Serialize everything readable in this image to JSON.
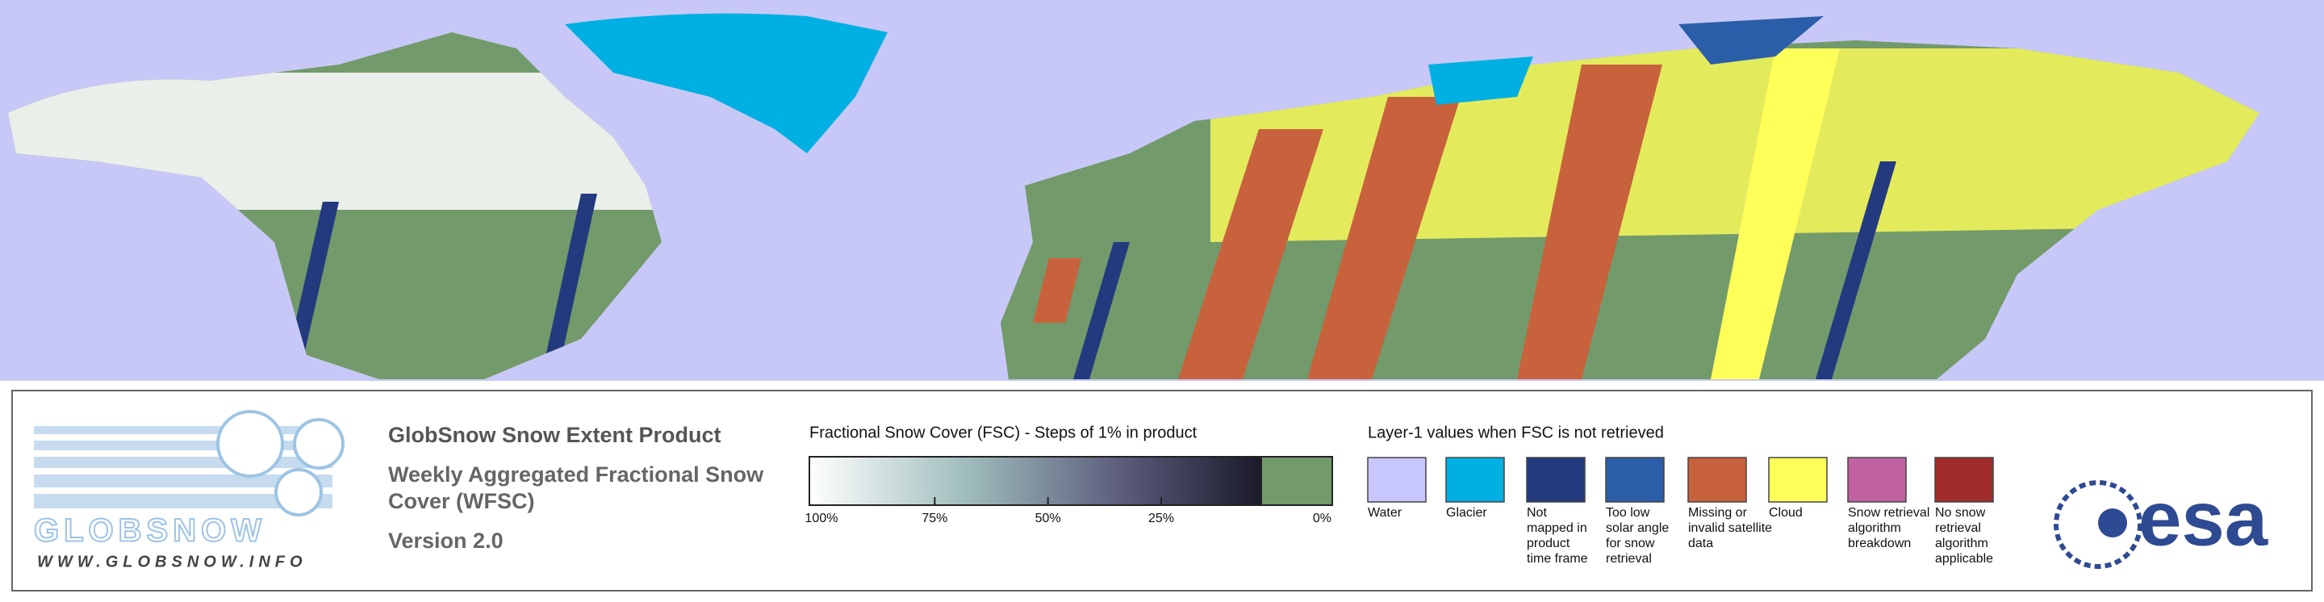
{
  "header": {
    "title": "GlobSnow Snow Extent Product",
    "subtitle_lines": [
      "Weekly Aggregated Fractional Snow",
      "Cover (WFSC)"
    ],
    "version": "Version 2.0"
  },
  "logo": {
    "name": "GLOBSNOW",
    "url": "WWW.GLOBSNOW.INFO",
    "agency": "esa"
  },
  "fsc_scale": {
    "title": "Fractional Snow Cover (FSC) - Steps of 1% in product",
    "labels": [
      "100%",
      "75%",
      "50%",
      "25%",
      "0%"
    ]
  },
  "layer1": {
    "title": "Layer-1 values when FSC is not retrieved",
    "items": [
      {
        "lines": [
          "Water"
        ],
        "color": "#c8c8ff"
      },
      {
        "lines": [
          "Glacier"
        ],
        "color": "#00b0e2"
      },
      {
        "lines": [
          "Not",
          "mapped in",
          "product",
          "time frame"
        ],
        "color": "#233a7e"
      },
      {
        "lines": [
          "Too low",
          "solar angle",
          "for snow",
          "retrieval"
        ],
        "color": "#2a5ea8"
      },
      {
        "lines": [
          "Missing or",
          "invalid satellite",
          "data"
        ],
        "color": "#c8623c"
      },
      {
        "lines": [
          "Cloud"
        ],
        "color": "#ffff5a"
      },
      {
        "lines": [
          "Snow retrieval",
          "algorithm",
          "breakdown"
        ],
        "color": "#c062a2"
      },
      {
        "lines": [
          "No snow",
          "retrieval",
          "algorithm",
          "applicable"
        ],
        "color": "#a02c2c"
      }
    ]
  }
}
